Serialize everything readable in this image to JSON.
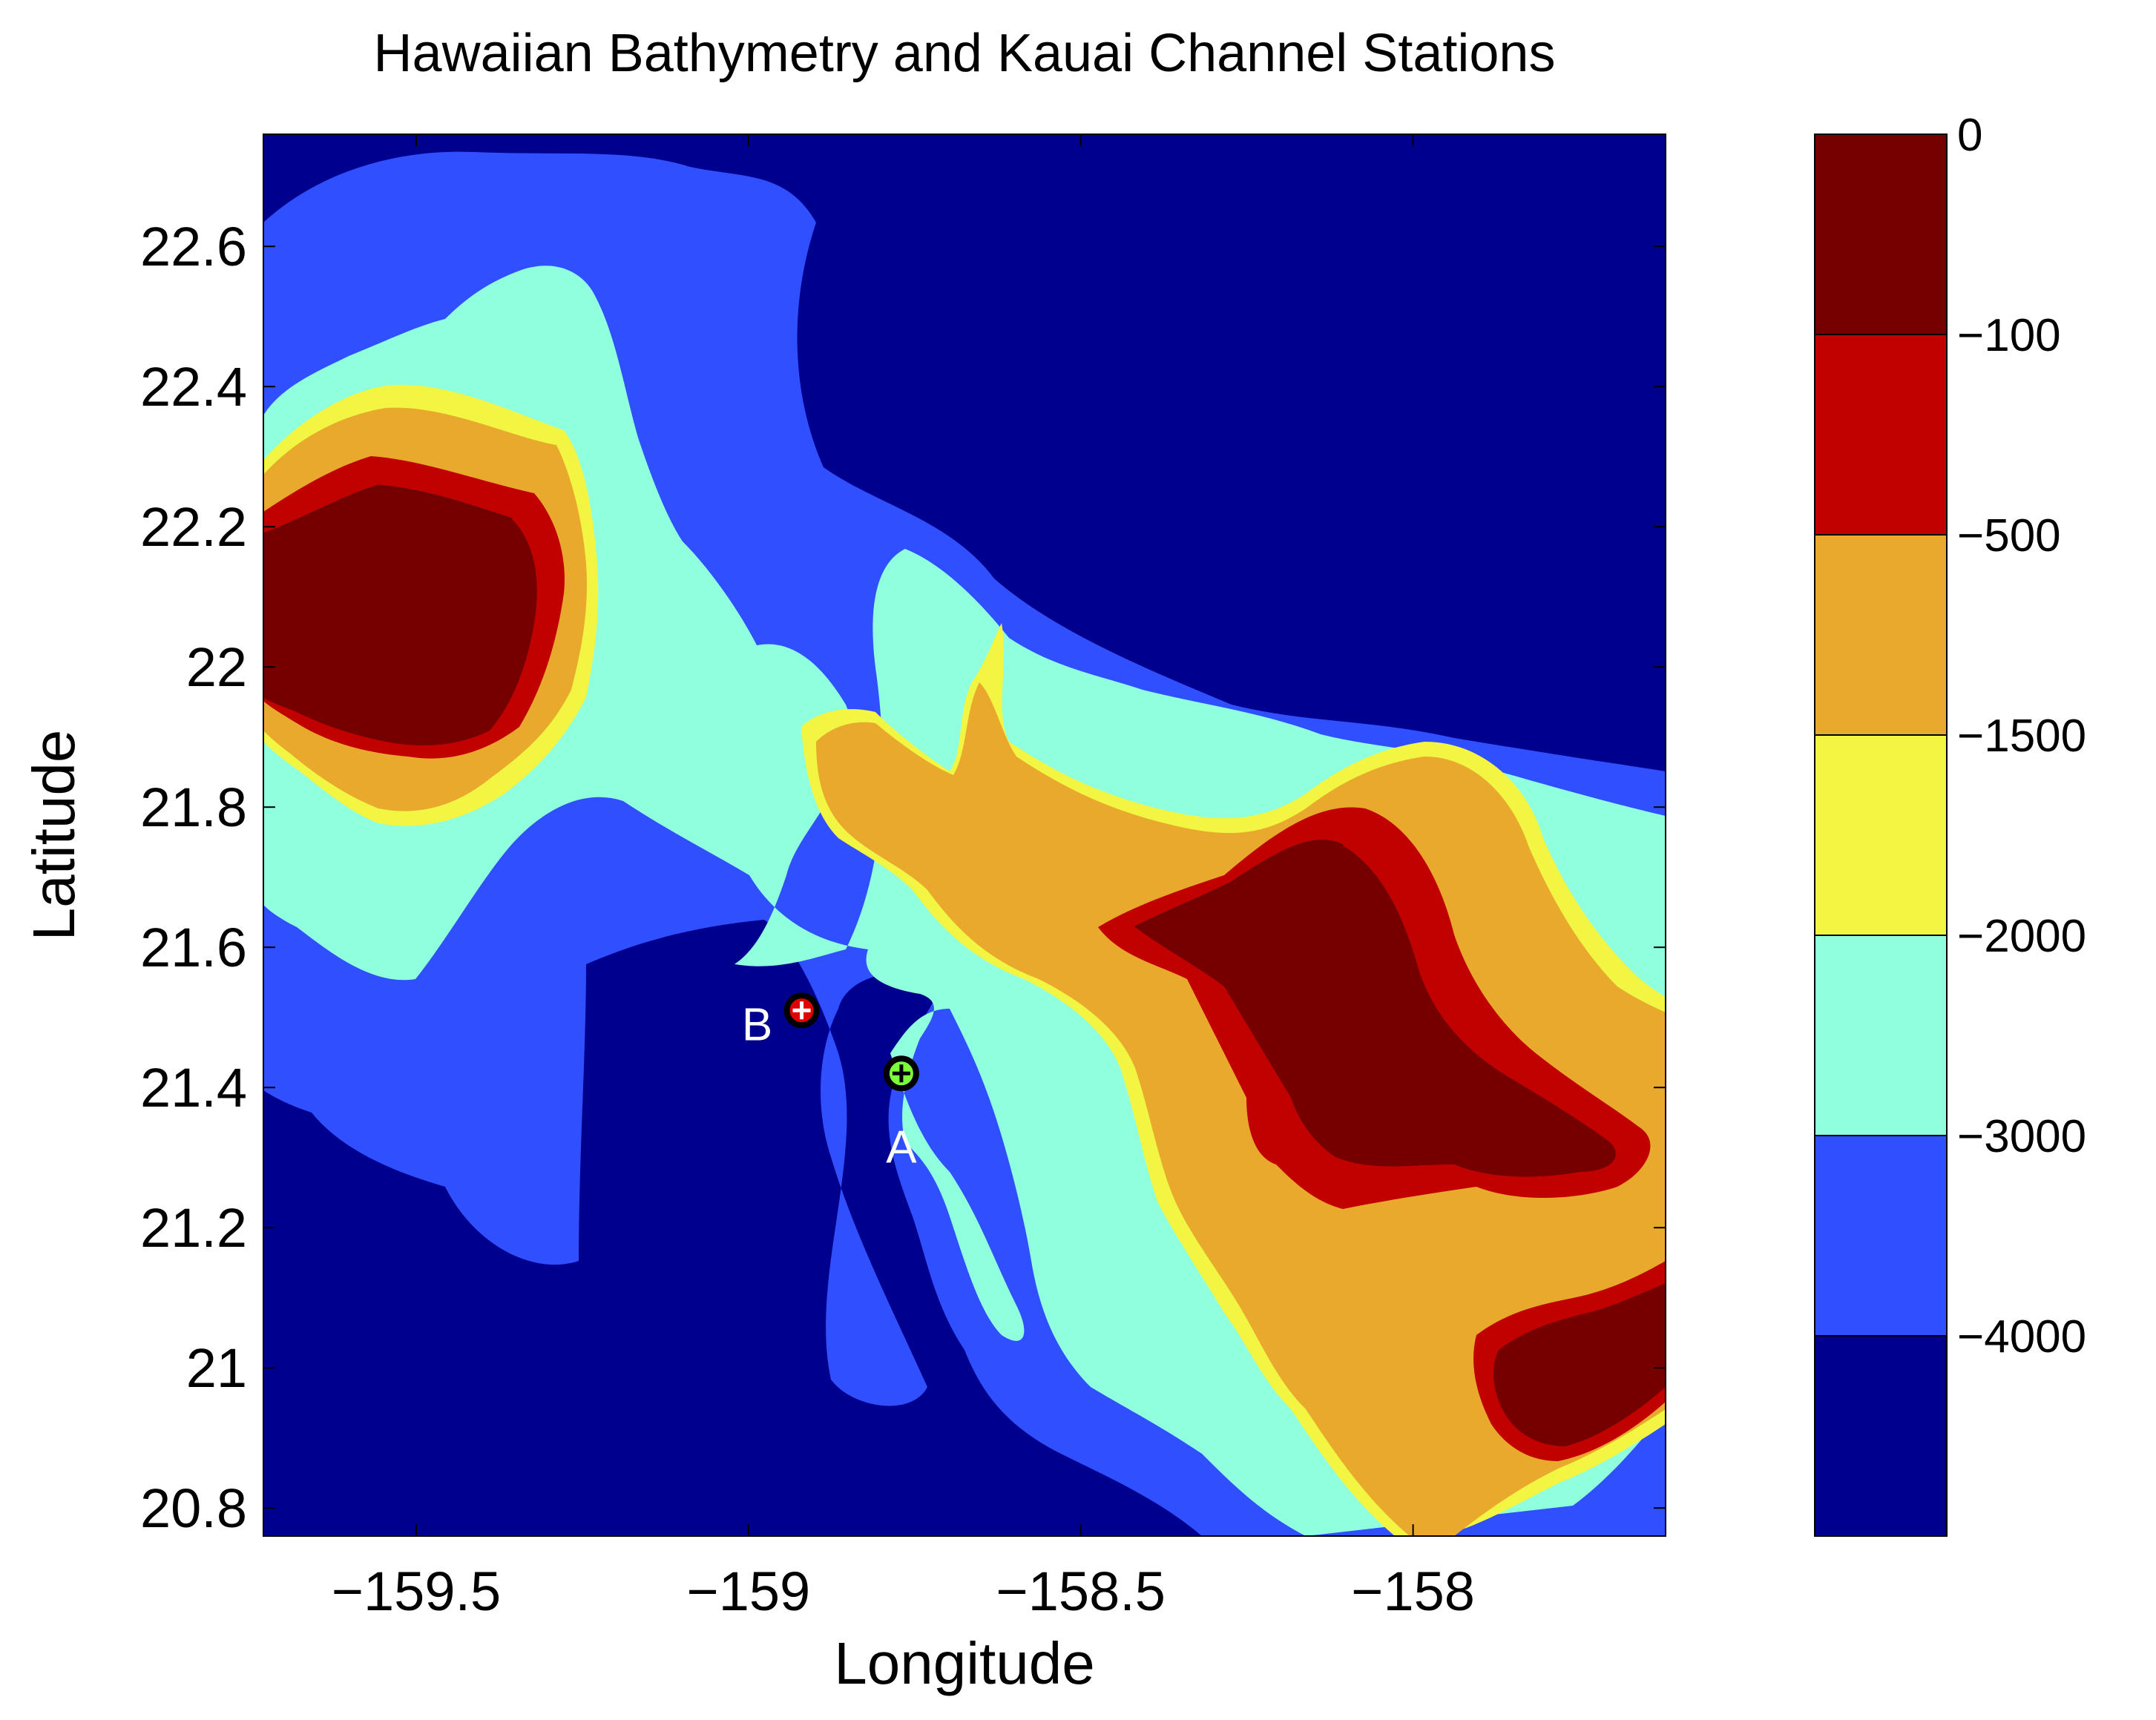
{
  "chart_data": {
    "type": "contour_map",
    "title": "Hawaiian Bathymetry and Kauai Channel Stations",
    "xlabel": "Longitude",
    "ylabel": "Latitude",
    "xlim": [
      -159.73,
      -157.62
    ],
    "ylim": [
      20.76,
      22.76
    ],
    "xticks": [
      -159.5,
      -159,
      -158.5,
      -158
    ],
    "xtick_labels": [
      "−159.5",
      "−159",
      "−158.5",
      "−158"
    ],
    "yticks": [
      20.8,
      21.0,
      21.2,
      21.4,
      21.6,
      21.8,
      22.0,
      22.2,
      22.4,
      22.6
    ],
    "ytick_labels": [
      "20.8",
      "21",
      "21.2",
      "21.4",
      "21.6",
      "21.8",
      "22",
      "22.2",
      "22.4",
      "22.6"
    ],
    "grid": false,
    "colorbar": {
      "bands": [
        {
          "color": "#00008f"
        },
        {
          "color": "#3050ff"
        },
        {
          "color": "#90ffdd"
        },
        {
          "color": "#f2f542"
        },
        {
          "color": "#e8a92c"
        },
        {
          "color": "#c10000"
        },
        {
          "color": "#750000"
        }
      ],
      "band_edge_color": "#6e0000",
      "tick_labels": [
        "−4000",
        "−3000",
        "−2000",
        "−1500",
        "−500",
        "−100",
        "0"
      ]
    },
    "stations": [
      {
        "label": "A",
        "lon": -158.77,
        "lat": 21.42,
        "color": "#7cff3c"
      },
      {
        "label": "B",
        "lon": -158.92,
        "lat": 21.51,
        "color": "#e00000"
      }
    ]
  }
}
